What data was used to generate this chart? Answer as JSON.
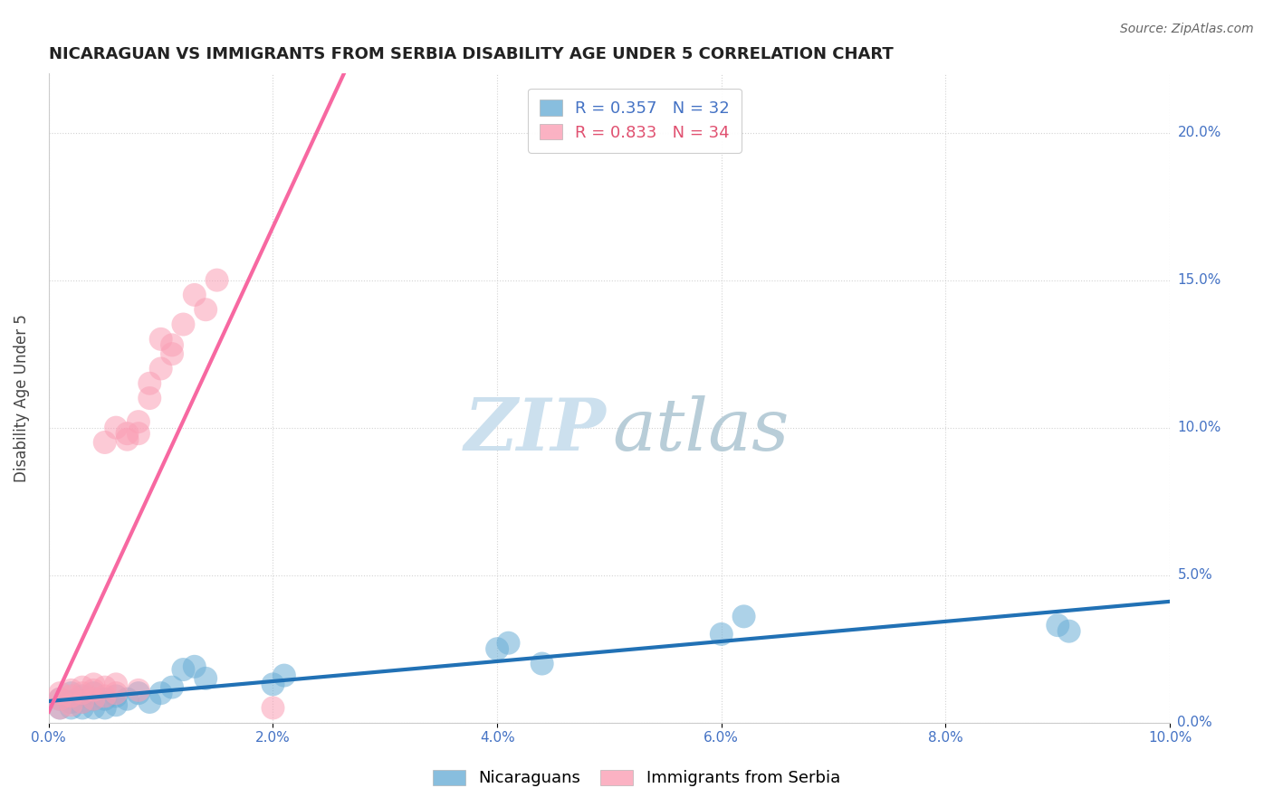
{
  "title": "NICARAGUAN VS IMMIGRANTS FROM SERBIA DISABILITY AGE UNDER 5 CORRELATION CHART",
  "source": "Source: ZipAtlas.com",
  "xlabel": "",
  "ylabel": "Disability Age Under 5",
  "xlim": [
    0.0,
    0.1
  ],
  "ylim": [
    0.0,
    0.22
  ],
  "xticks": [
    0.0,
    0.02,
    0.04,
    0.06,
    0.08,
    0.1
  ],
  "yticks": [
    0.0,
    0.05,
    0.1,
    0.15,
    0.2
  ],
  "ytick_labels": [
    "0.0%",
    "5.0%",
    "10.0%",
    "15.0%",
    "20.0%"
  ],
  "xtick_labels": [
    "0.0%",
    "2.0%",
    "4.0%",
    "6.0%",
    "8.0%",
    "10.0%"
  ],
  "legend1_r": "0.357",
  "legend1_n": "32",
  "legend2_r": "0.833",
  "legend2_n": "34",
  "blue_color": "#6baed6",
  "pink_color": "#fa9fb5",
  "blue_line_color": "#2171b5",
  "pink_line_color": "#f768a1",
  "nic_x": [
    0.001,
    0.001,
    0.002,
    0.002,
    0.002,
    0.003,
    0.003,
    0.003,
    0.004,
    0.004,
    0.004,
    0.005,
    0.005,
    0.006,
    0.006,
    0.007,
    0.008,
    0.009,
    0.01,
    0.011,
    0.012,
    0.013,
    0.014,
    0.02,
    0.021,
    0.04,
    0.041,
    0.044,
    0.06,
    0.062,
    0.09,
    0.091
  ],
  "nic_y": [
    0.005,
    0.008,
    0.005,
    0.007,
    0.01,
    0.005,
    0.007,
    0.009,
    0.005,
    0.008,
    0.01,
    0.005,
    0.008,
    0.006,
    0.009,
    0.008,
    0.01,
    0.007,
    0.01,
    0.012,
    0.018,
    0.019,
    0.015,
    0.013,
    0.016,
    0.025,
    0.027,
    0.02,
    0.03,
    0.036,
    0.033,
    0.031
  ],
  "ser_x": [
    0.001,
    0.001,
    0.001,
    0.002,
    0.002,
    0.002,
    0.003,
    0.003,
    0.003,
    0.004,
    0.004,
    0.004,
    0.005,
    0.005,
    0.005,
    0.006,
    0.006,
    0.006,
    0.007,
    0.007,
    0.008,
    0.008,
    0.008,
    0.009,
    0.009,
    0.01,
    0.01,
    0.011,
    0.011,
    0.012,
    0.013,
    0.014,
    0.015,
    0.02
  ],
  "ser_y": [
    0.005,
    0.008,
    0.01,
    0.006,
    0.009,
    0.011,
    0.007,
    0.01,
    0.012,
    0.008,
    0.011,
    0.013,
    0.009,
    0.012,
    0.095,
    0.1,
    0.01,
    0.013,
    0.098,
    0.096,
    0.102,
    0.098,
    0.011,
    0.11,
    0.115,
    0.12,
    0.13,
    0.125,
    0.128,
    0.135,
    0.145,
    0.14,
    0.15,
    0.005
  ]
}
